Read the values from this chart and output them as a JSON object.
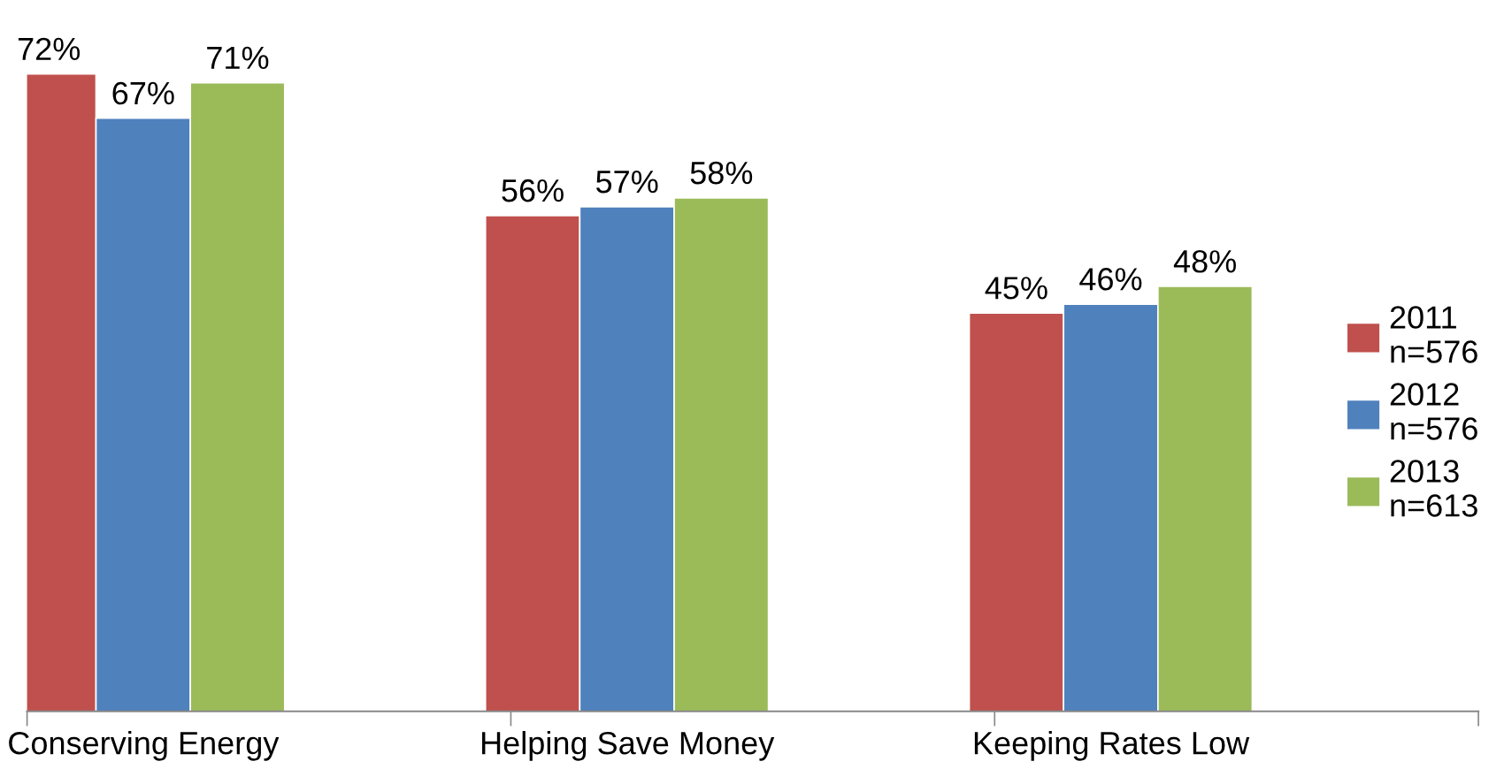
{
  "chart_data": {
    "type": "bar",
    "categories": [
      "Conserving Energy",
      "Helping Save Money",
      "Keeping Rates Low"
    ],
    "series": [
      {
        "name": "2011\nn=576",
        "color": "#c0504d",
        "values": [
          72,
          56,
          45
        ],
        "value_labels": [
          "72%",
          "56%",
          "45%"
        ]
      },
      {
        "name": "2012\nn=576",
        "color": "#4f81bd",
        "values": [
          67,
          57,
          46
        ],
        "value_labels": [
          "67%",
          "57%",
          "46%"
        ]
      },
      {
        "name": "2013\nn=613",
        "color": "#9bbb59",
        "values": [
          71,
          58,
          48
        ],
        "value_labels": [
          "71%",
          "58%",
          "48%"
        ]
      }
    ],
    "legend": "right",
    "grid": false
  }
}
